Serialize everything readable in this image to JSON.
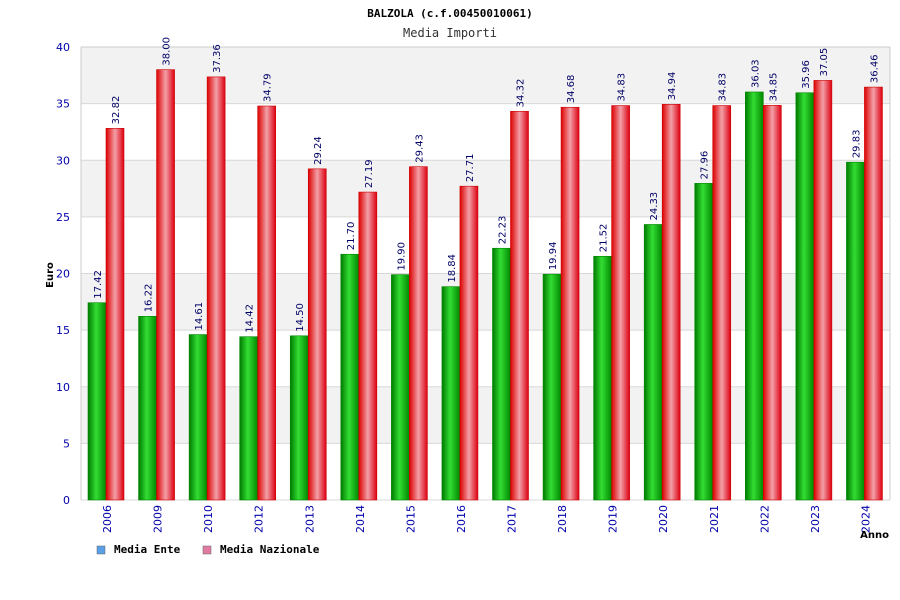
{
  "chart_data": {
    "type": "bar",
    "title": "BALZOLA (c.f.00450010061)",
    "subtitle": "Media Importi",
    "ylabel": "Euro",
    "xlabel": "Anno",
    "ylim": [
      0,
      40
    ],
    "yticks": [
      0,
      5,
      10,
      15,
      20,
      25,
      30,
      35,
      40
    ],
    "grid": true,
    "legend_position": "bottom-left",
    "categories": [
      "2006",
      "2009",
      "2010",
      "2012",
      "2013",
      "2014",
      "2015",
      "2016",
      "2017",
      "2018",
      "2019",
      "2020",
      "2021",
      "2022",
      "2023",
      "2024"
    ],
    "series": [
      {
        "name": "Media Ente",
        "color": "#00aa00",
        "legend_color": "#5aa0e6",
        "values": [
          17.42,
          16.22,
          14.61,
          14.42,
          14.5,
          21.7,
          19.9,
          18.84,
          22.23,
          19.94,
          21.52,
          24.33,
          27.96,
          36.03,
          35.96,
          29.83
        ],
        "labels": [
          "17.42",
          "16.22",
          "14.61",
          "14.42",
          "14.50",
          "21.70",
          "19.90",
          "18.84",
          "22.23",
          "19.94",
          "21.52",
          "24.33",
          "27.96",
          "36.03",
          "35.96",
          "29.83"
        ]
      },
      {
        "name": "Media Nazionale",
        "color": "#ee0000",
        "legend_color": "#e07aa0",
        "values": [
          32.82,
          38.0,
          37.36,
          34.79,
          29.24,
          27.19,
          29.43,
          27.71,
          34.32,
          34.68,
          34.83,
          34.94,
          34.83,
          34.85,
          37.05,
          36.46
        ],
        "labels": [
          "32.82",
          "38.00",
          "37.36",
          "34.79",
          "29.24",
          "27.19",
          "29.43",
          "27.71",
          "34.32",
          "34.68",
          "34.83",
          "34.94",
          "34.83",
          "34.85",
          "37.05",
          "36.46"
        ]
      }
    ]
  }
}
